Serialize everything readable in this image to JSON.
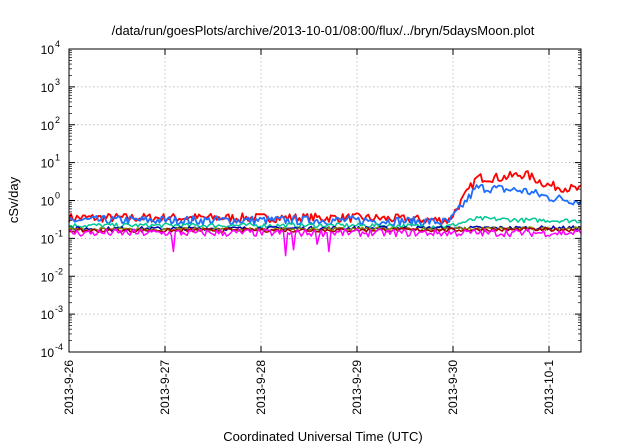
{
  "chart_data": {
    "type": "line",
    "title": "/data/run/goesPlots/archive/2013-10-01/08:00/flux/../bryn/5daysMoon.plot",
    "xlabel": "Coordinated Universal Time (UTC)",
    "ylabel": "cSv/day",
    "yscale": "log",
    "ylim": [
      0.0001,
      10000
    ],
    "xlim": [
      "2013-09-26 00:00",
      "2013-10-01 08:00"
    ],
    "grid": true,
    "legend": "none",
    "x_ticks": [
      "2013-9-26",
      "2013-9-27",
      "2013-9-28",
      "2013-9-29",
      "2013-9-30",
      "2013-10-1"
    ],
    "y_ticks": [
      {
        "base": "10",
        "exp": "-4",
        "value": 0.0001
      },
      {
        "base": "10",
        "exp": "-3",
        "value": 0.001
      },
      {
        "base": "10",
        "exp": "-2",
        "value": 0.01
      },
      {
        "base": "10",
        "exp": "-1",
        "value": 0.1
      },
      {
        "base": "10",
        "exp": "0",
        "value": 1
      },
      {
        "base": "10",
        "exp": "1",
        "value": 10
      },
      {
        "base": "10",
        "exp": "2",
        "value": 100
      },
      {
        "base": "10",
        "exp": "3",
        "value": 1000
      },
      {
        "base": "10",
        "exp": "4",
        "value": 10000
      }
    ],
    "series": [
      {
        "color": "#ff0000",
        "x": [
          "2013-09-26 00:00",
          "2013-09-27 00:00",
          "2013-09-28 00:00",
          "2013-09-29 00:00",
          "2013-09-29 23:00",
          "2013-09-30 06:00",
          "2013-09-30 12:00",
          "2013-09-30 18:00",
          "2013-10-01 00:00",
          "2013-10-01 08:00"
        ],
        "y": [
          0.35,
          0.35,
          0.35,
          0.35,
          0.3,
          4.0,
          4.0,
          5.0,
          2.5,
          1.9
        ],
        "noise": 0.12
      },
      {
        "color": "#1f6fff",
        "x": [
          "2013-09-26 00:00",
          "2013-09-27 00:00",
          "2013-09-28 00:00",
          "2013-09-29 00:00",
          "2013-09-29 23:00",
          "2013-09-30 06:00",
          "2013-09-30 12:00",
          "2013-09-30 18:00",
          "2013-10-01 00:00",
          "2013-10-01 08:00"
        ],
        "y": [
          0.3,
          0.3,
          0.3,
          0.3,
          0.27,
          2.2,
          2.0,
          1.8,
          1.2,
          0.95
        ],
        "noise": 0.12
      },
      {
        "color": "#00c896",
        "x": [
          "2013-09-26 00:00",
          "2013-09-27 00:00",
          "2013-09-28 00:00",
          "2013-09-29 00:00",
          "2013-09-29 23:00",
          "2013-09-30 06:00",
          "2013-09-30 12:00",
          "2013-09-30 18:00",
          "2013-10-01 00:00",
          "2013-10-01 08:00"
        ],
        "y": [
          0.22,
          0.22,
          0.22,
          0.22,
          0.21,
          0.33,
          0.32,
          0.3,
          0.3,
          0.29
        ],
        "noise": 0.06
      },
      {
        "color": "#0000aa",
        "x": [
          "2013-09-26 00:00",
          "2013-10-01 08:00"
        ],
        "y": [
          0.18,
          0.19
        ],
        "noise": 0.05
      },
      {
        "color": "#888800",
        "x": [
          "2013-09-26 00:00",
          "2013-10-01 08:00"
        ],
        "y": [
          0.17,
          0.18
        ],
        "noise": 0.05
      },
      {
        "color": "#aa0000",
        "x": [
          "2013-09-26 00:00",
          "2013-10-01 08:00"
        ],
        "y": [
          0.16,
          0.17
        ],
        "noise": 0.05
      },
      {
        "color": "#ff00ff",
        "x": [
          "2013-09-26 00:00",
          "2013-10-01 08:00"
        ],
        "y": [
          0.14,
          0.14
        ],
        "noise": 0.1,
        "dips": [
          {
            "x": "2013-09-27 02:00",
            "y": 0.045
          },
          {
            "x": "2013-09-28 06:00",
            "y": 0.035
          },
          {
            "x": "2013-09-28 08:00",
            "y": 0.05
          },
          {
            "x": "2013-09-28 14:00",
            "y": 0.07
          },
          {
            "x": "2013-09-28 17:00",
            "y": 0.045
          }
        ]
      }
    ]
  }
}
